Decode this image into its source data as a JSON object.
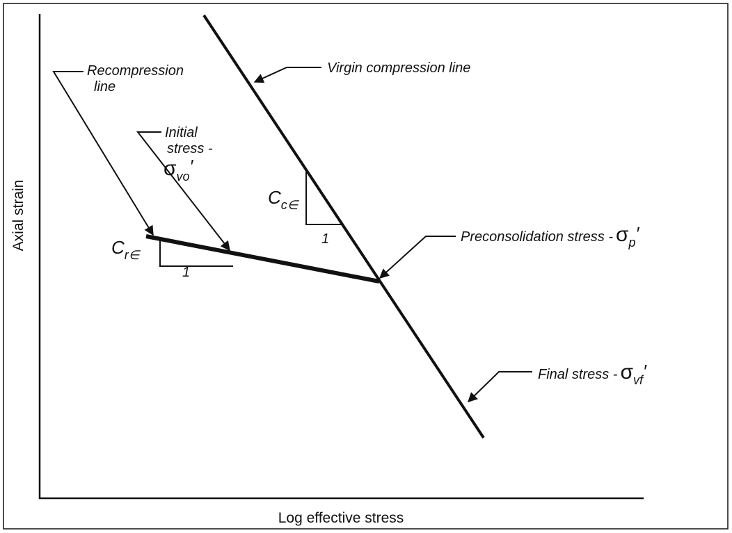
{
  "axes": {
    "x_label": "Log effective stress",
    "y_label": "Axial strain"
  },
  "annotations": {
    "virgin": {
      "text": "Virgin compression line"
    },
    "recompression": {
      "lines": [
        "Recompression",
        "line"
      ]
    },
    "initial": {
      "lines": [
        "Initial",
        "stress -"
      ],
      "symbol": "σ",
      "subscript": "vo",
      "prime": "′"
    },
    "preconsolidation": {
      "text": "Preconsolidation stress -",
      "symbol": "σ",
      "subscript": "p",
      "prime": "′"
    },
    "final": {
      "text": "Final stress -",
      "symbol": "σ",
      "subscript": "vf",
      "prime": "′"
    }
  },
  "slopes": {
    "compression": {
      "symbol": "C",
      "subscript": "c∈",
      "run": "1"
    },
    "recompression": {
      "symbol": "C",
      "subscript": "r∈",
      "run": "1"
    }
  }
}
